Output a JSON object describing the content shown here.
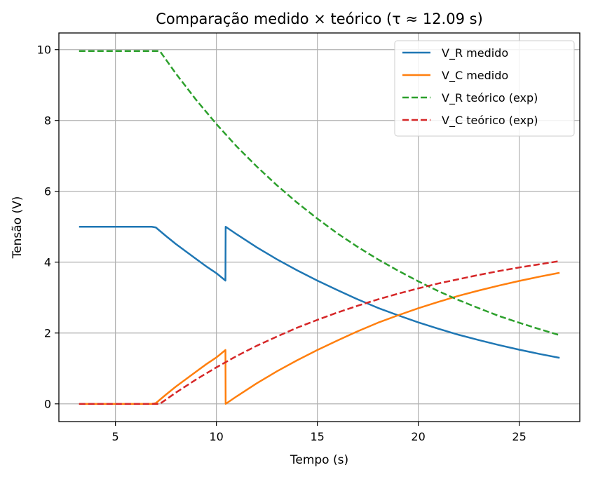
{
  "chart_data": {
    "type": "line",
    "title": "Comparação medido × teórico (τ ≈ 12.09 s)",
    "xlabel": "Tempo (s)",
    "ylabel": "Tensão (V)",
    "xlim": [
      2.2,
      28.0
    ],
    "ylim": [
      -0.5,
      10.47
    ],
    "xticks": [
      5,
      10,
      15,
      20,
      25
    ],
    "yticks": [
      0,
      2,
      4,
      6,
      8,
      10
    ],
    "grid": true,
    "legend_position": "top-right",
    "series": [
      {
        "name": "V_R medido",
        "color": "#1f77b4",
        "style": "solid",
        "x": [
          3.2,
          4.0,
          5.0,
          6.0,
          6.8,
          7.0,
          7.5,
          8.0,
          8.5,
          9.0,
          9.5,
          10.0,
          10.45,
          10.46,
          11.0,
          12.0,
          13.0,
          14.0,
          15.0,
          16.0,
          17.0,
          18.0,
          19.0,
          20.0,
          21.0,
          22.0,
          23.0,
          24.0,
          25.0,
          26.0,
          27.0
        ],
        "y": [
          5.0,
          5.0,
          5.0,
          5.0,
          5.0,
          4.98,
          4.74,
          4.51,
          4.3,
          4.09,
          3.88,
          3.69,
          3.48,
          5.0,
          4.79,
          4.42,
          4.08,
          3.77,
          3.48,
          3.21,
          2.95,
          2.71,
          2.5,
          2.3,
          2.12,
          1.95,
          1.8,
          1.66,
          1.53,
          1.41,
          1.3
        ]
      },
      {
        "name": "V_C medido",
        "color": "#ff7f0e",
        "style": "solid",
        "x": [
          3.2,
          4.0,
          5.0,
          6.0,
          6.8,
          7.0,
          7.5,
          8.0,
          8.5,
          9.0,
          9.5,
          10.0,
          10.45,
          10.46,
          11.0,
          12.0,
          13.0,
          14.0,
          15.0,
          16.0,
          17.0,
          18.0,
          19.0,
          20.0,
          21.0,
          22.0,
          23.0,
          24.0,
          25.0,
          26.0,
          27.0
        ],
        "y": [
          0.0,
          0.0,
          0.0,
          0.0,
          0.0,
          0.02,
          0.26,
          0.49,
          0.7,
          0.91,
          1.12,
          1.31,
          1.52,
          0.0,
          0.21,
          0.58,
          0.92,
          1.23,
          1.52,
          1.79,
          2.05,
          2.29,
          2.5,
          2.7,
          2.88,
          3.05,
          3.2,
          3.34,
          3.47,
          3.59,
          3.7
        ]
      },
      {
        "name": "V_R teórico (exp)",
        "color": "#2ca02c",
        "style": "dashed",
        "x": [
          3.2,
          5.0,
          7.0,
          7.2,
          8.0,
          9.0,
          10.0,
          11.0,
          12.0,
          13.0,
          14.0,
          15.0,
          16.0,
          17.0,
          18.0,
          19.0,
          20.0,
          21.0,
          22.0,
          23.0,
          24.0,
          25.0,
          26.0,
          27.0
        ],
        "y": [
          9.96,
          9.96,
          9.96,
          9.96,
          9.32,
          8.58,
          7.9,
          7.27,
          6.7,
          6.17,
          5.68,
          5.23,
          4.81,
          4.43,
          4.08,
          3.76,
          3.46,
          3.18,
          2.93,
          2.7,
          2.48,
          2.29,
          2.11,
          1.94
        ]
      },
      {
        "name": "V_C teórico (exp)",
        "color": "#d62728",
        "style": "dashed",
        "x": [
          3.2,
          5.0,
          7.0,
          7.2,
          8.0,
          9.0,
          10.0,
          11.0,
          12.0,
          13.0,
          14.0,
          15.0,
          16.0,
          17.0,
          18.0,
          19.0,
          20.0,
          21.0,
          22.0,
          23.0,
          24.0,
          25.0,
          26.0,
          27.0
        ],
        "y": [
          0.0,
          0.0,
          0.0,
          0.0,
          0.32,
          0.69,
          1.03,
          1.35,
          1.64,
          1.9,
          2.15,
          2.37,
          2.58,
          2.77,
          2.95,
          3.11,
          3.26,
          3.4,
          3.52,
          3.64,
          3.75,
          3.85,
          3.94,
          4.03
        ]
      }
    ]
  }
}
